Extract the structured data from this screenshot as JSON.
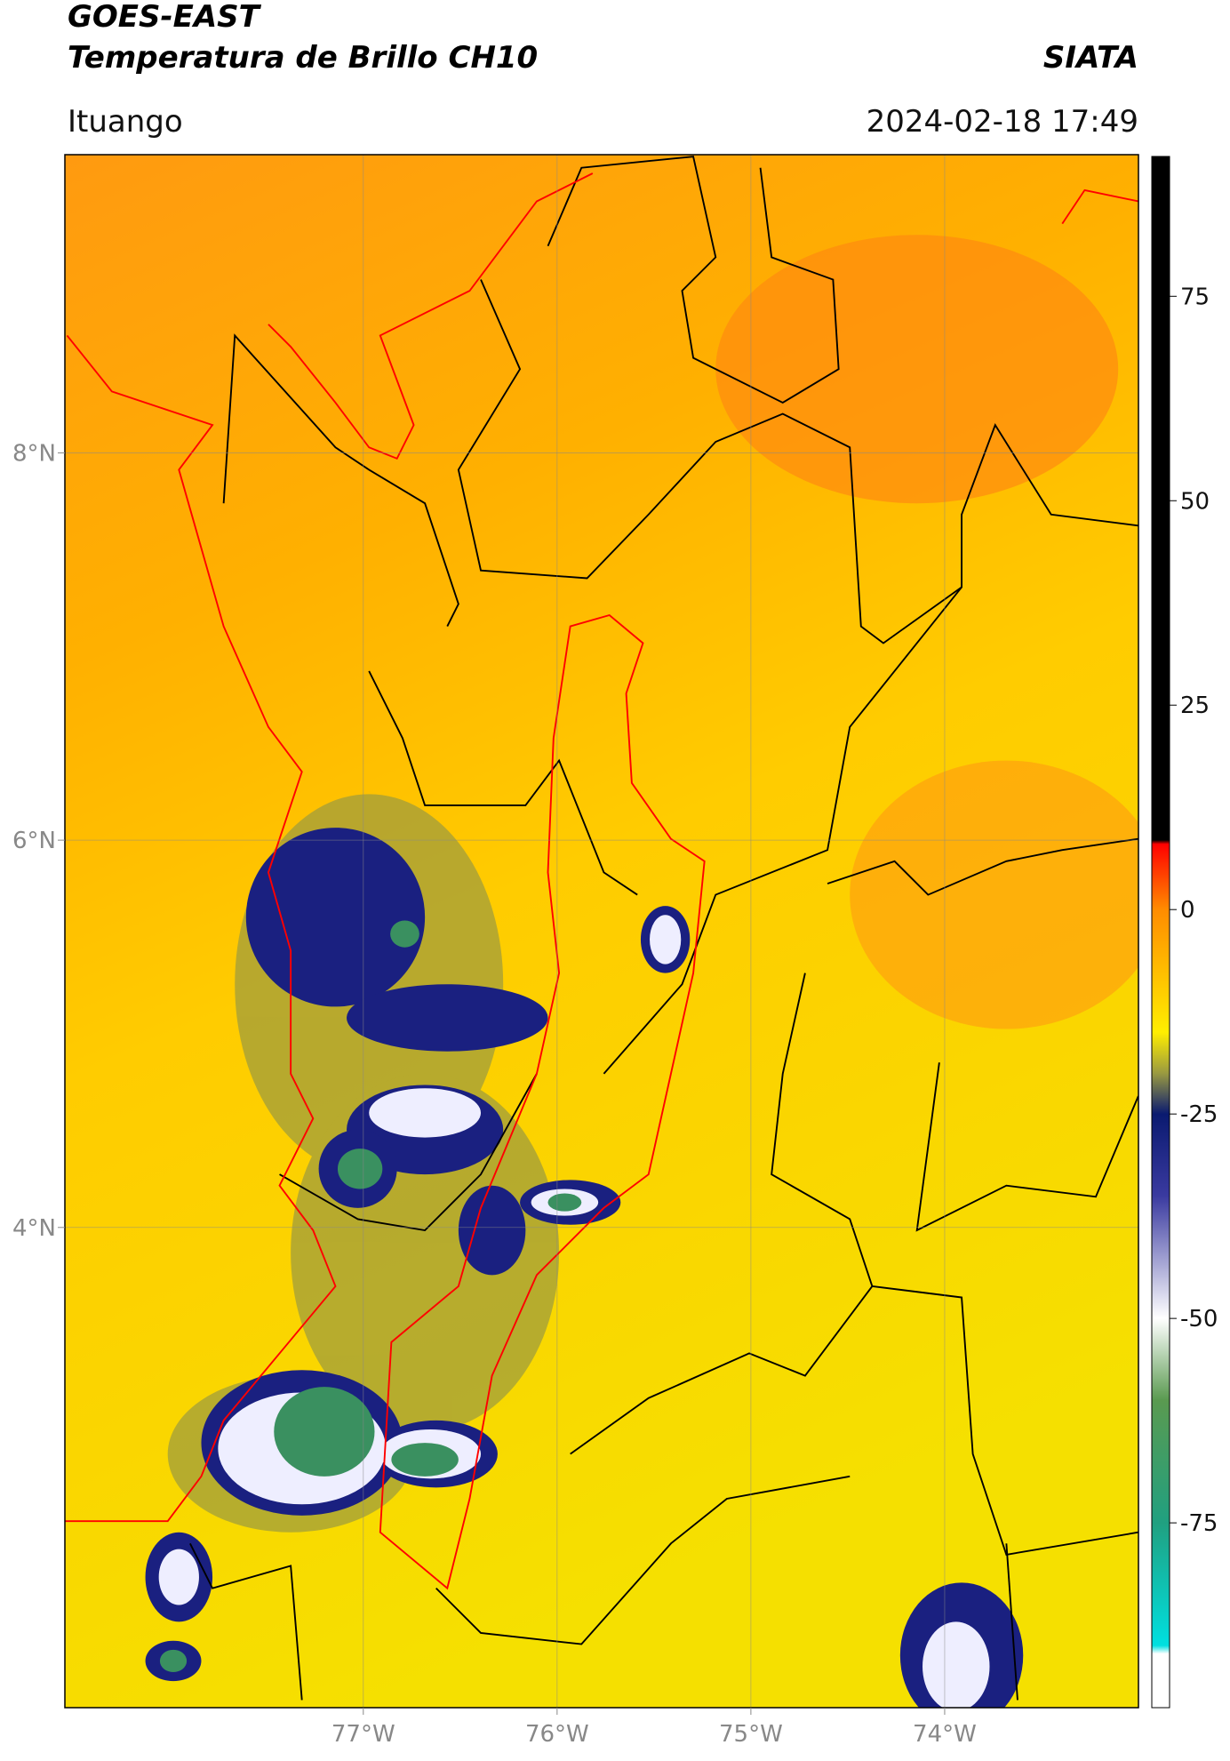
{
  "header": {
    "satellite": "GOES-EAST",
    "product": "Temperatura de Brillo CH10",
    "brand": "SIATA",
    "location": "Ituango",
    "datetime": "2024-02-18 17:49"
  },
  "map": {
    "xlim": [
      -78.54,
      -73.0
    ],
    "ylim": [
      1.52,
      9.54
    ],
    "xticks": [
      {
        "value": -77,
        "label": "77°W"
      },
      {
        "value": -76,
        "label": "76°W"
      },
      {
        "value": -75,
        "label": "75°W"
      },
      {
        "value": -74,
        "label": "74°W"
      }
    ],
    "yticks": [
      {
        "value": 8,
        "label": "8°N"
      },
      {
        "value": 6,
        "label": "6°N"
      },
      {
        "value": 4,
        "label": "4°N"
      }
    ],
    "grid": true
  },
  "colorbar": {
    "lim": [
      -97.6,
      92.1
    ],
    "ticks": [
      75,
      50,
      25,
      0,
      -25,
      -50,
      -75
    ],
    "colormap": [
      {
        "value": 92.1,
        "color": "#000000"
      },
      {
        "value": 8.5,
        "color": "#000000"
      },
      {
        "value": 8,
        "color": "#ff0000"
      },
      {
        "value": 0,
        "color": "#ff8c00"
      },
      {
        "value": -15,
        "color": "#ffee00"
      },
      {
        "value": -20,
        "color": "#9a9a40"
      },
      {
        "value": -25,
        "color": "#0a1a70"
      },
      {
        "value": -35,
        "color": "#3a3aa0"
      },
      {
        "value": -50,
        "color": "#ffffff"
      },
      {
        "value": -60,
        "color": "#5a9a50"
      },
      {
        "value": -75,
        "color": "#20a080"
      },
      {
        "value": -90,
        "color": "#00e0e0"
      },
      {
        "value": -91,
        "color": "#ffffff"
      },
      {
        "value": -97.6,
        "color": "#ffffff"
      }
    ]
  }
}
